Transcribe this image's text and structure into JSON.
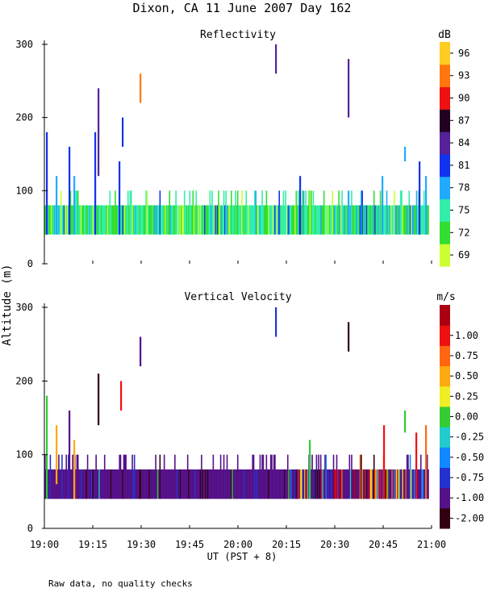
{
  "title": "Dixon, CA 11 June 2007  Day 162",
  "footer_note": "Raw data, no quality checks",
  "ylabel": "Altitude (m)",
  "xlabel": "UT  (PST + 8)",
  "chart_data": [
    {
      "type": "heatmap",
      "title": "Reflectivity",
      "colorbar_unit": "dB",
      "ylim": [
        0,
        300
      ],
      "yticks": [
        "0",
        "100",
        "200",
        "300"
      ],
      "xlim_minutes": [
        0,
        120
      ],
      "xticks": [
        "19:00",
        "19:15",
        "19:30",
        "19:45",
        "20:00",
        "20:15",
        "20:30",
        "20:45",
        "21:00"
      ],
      "colorbar_levels": [
        "69",
        "72",
        "75",
        "78",
        "81",
        "84",
        "87",
        "90",
        "93",
        "96"
      ],
      "colorbar_colors": [
        "#ccff33",
        "#33dd33",
        "#33eeaa",
        "#22aaff",
        "#1133ee",
        "#552299",
        "#220022",
        "#ee1111",
        "#ff7711",
        "#ffcc22"
      ],
      "base_layer_m": [
        40,
        80
      ],
      "tall_echoes": [
        {
          "t": 0.5,
          "bottom": 40,
          "top": 180,
          "level": 4
        },
        {
          "t": 3.5,
          "bottom": 40,
          "top": 120,
          "level": 3
        },
        {
          "t": 7.5,
          "bottom": 40,
          "top": 160,
          "level": 4
        },
        {
          "t": 9.0,
          "bottom": 40,
          "top": 120,
          "level": 3
        },
        {
          "t": 15.5,
          "bottom": 40,
          "top": 180,
          "level": 4
        },
        {
          "t": 16.5,
          "bottom": 120,
          "top": 240,
          "level": 5
        },
        {
          "t": 23.0,
          "bottom": 40,
          "top": 140,
          "level": 4
        },
        {
          "t": 24.0,
          "bottom": 160,
          "top": 200,
          "level": 4
        },
        {
          "t": 29.5,
          "bottom": 220,
          "top": 260,
          "level": 8
        },
        {
          "t": 71.5,
          "bottom": 260,
          "top": 300,
          "level": 5
        },
        {
          "t": 79.0,
          "bottom": 40,
          "top": 120,
          "level": 4
        },
        {
          "t": 94.0,
          "bottom": 200,
          "top": 280,
          "level": 5
        },
        {
          "t": 94.0,
          "bottom": 40,
          "top": 100,
          "level": 3
        },
        {
          "t": 104.5,
          "bottom": 40,
          "top": 120,
          "level": 3
        },
        {
          "t": 111.5,
          "bottom": 140,
          "top": 160,
          "level": 3
        },
        {
          "t": 116.0,
          "bottom": 40,
          "top": 140,
          "level": 4
        },
        {
          "t": 118.0,
          "bottom": 40,
          "top": 120,
          "level": 3
        }
      ]
    },
    {
      "type": "heatmap",
      "title": "Vertical Velocity",
      "colorbar_unit": "m/s",
      "ylim": [
        0,
        300
      ],
      "yticks": [
        "0",
        "100",
        "200",
        "300"
      ],
      "xlim_minutes": [
        0,
        120
      ],
      "xticks": [
        "19:00",
        "19:15",
        "19:30",
        "19:45",
        "20:00",
        "20:15",
        "20:30",
        "20:45",
        "21:00"
      ],
      "colorbar_levels": [
        "-2.00",
        "-1.00",
        "-0.75",
        "-0.50",
        "-0.25",
        "0.00",
        "0.25",
        "0.50",
        "0.75",
        "1.00"
      ],
      "colorbar_colors": [
        "#330011",
        "#551188",
        "#2233cc",
        "#1188ff",
        "#22cccc",
        "#33cc33",
        "#eeee22",
        "#ffaa11",
        "#ff6611",
        "#ee1111",
        "#aa0011"
      ],
      "base_layer_m": [
        40,
        80
      ],
      "tall_echoes": [
        {
          "t": 0.5,
          "bottom": 40,
          "top": 180,
          "level": 5
        },
        {
          "t": 3.5,
          "bottom": 60,
          "top": 140,
          "level": 7
        },
        {
          "t": 7.5,
          "bottom": 60,
          "top": 160,
          "level": 1
        },
        {
          "t": 9.0,
          "bottom": 40,
          "top": 120,
          "level": 7
        },
        {
          "t": 16.5,
          "bottom": 140,
          "top": 210,
          "level": 0
        },
        {
          "t": 23.5,
          "bottom": 160,
          "top": 200,
          "level": 9
        },
        {
          "t": 29.5,
          "bottom": 220,
          "top": 260,
          "level": 1
        },
        {
          "t": 71.5,
          "bottom": 260,
          "top": 300,
          "level": 2
        },
        {
          "t": 82.0,
          "bottom": 40,
          "top": 120,
          "level": 5
        },
        {
          "t": 94.0,
          "bottom": 240,
          "top": 280,
          "level": 0
        },
        {
          "t": 105.0,
          "bottom": 40,
          "top": 140,
          "level": 9
        },
        {
          "t": 111.5,
          "bottom": 130,
          "top": 160,
          "level": 5
        },
        {
          "t": 115.0,
          "bottom": 40,
          "top": 130,
          "level": 9
        },
        {
          "t": 118.0,
          "bottom": 40,
          "top": 140,
          "level": 8
        }
      ]
    }
  ]
}
